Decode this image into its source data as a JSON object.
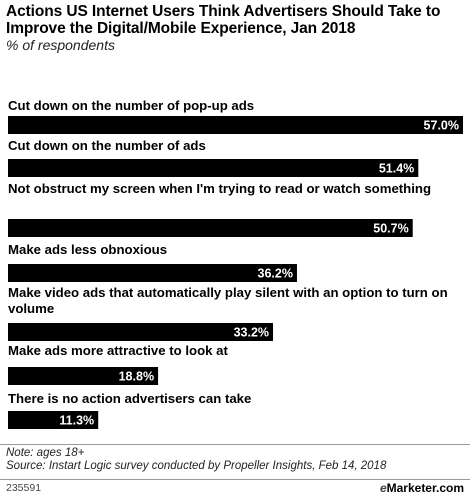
{
  "header": {
    "title": "Actions US Internet Users Think Advertisers Should Take to Improve the Digital/Mobile Experience, Jan 2018",
    "subtitle": "% of respondents"
  },
  "chart_data": {
    "type": "bar",
    "orientation": "horizontal",
    "categories": [
      "Cut down on the number of pop-up ads",
      "Cut down on the number of ads",
      "Not obstruct my screen when I'm trying to read or watch something",
      "Make ads less obnoxious",
      "Make video ads that automatically play silent with an option to turn on volume",
      "Make ads more attractive to look at",
      "There is no action advertisers can take"
    ],
    "values": [
      57.0,
      51.4,
      50.7,
      36.2,
      33.2,
      18.8,
      11.3
    ],
    "value_labels": [
      "57.0%",
      "51.4%",
      "50.7%",
      "36.2%",
      "33.2%",
      "18.8%",
      "11.3%"
    ],
    "xlim": [
      0,
      57.0
    ],
    "bar_color": "#000000",
    "grid": false
  },
  "footer": {
    "note": "Note: ages 18+",
    "source": "Source: Instart Logic survey conducted by Propeller Insights, Feb 14, 2018"
  },
  "bottom": {
    "chart_id": "235591",
    "brand_e": "e",
    "brand_rest": "Marketer.com"
  }
}
